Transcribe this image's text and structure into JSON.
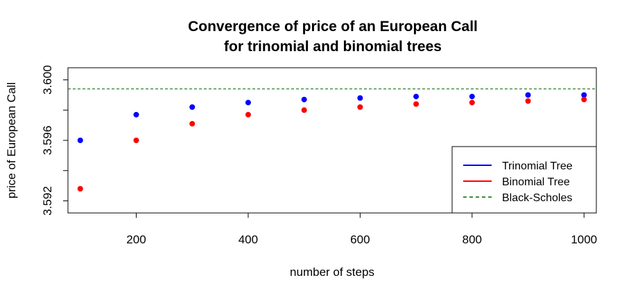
{
  "chart_data": {
    "type": "scatter",
    "title": "Convergence of price of an European Call",
    "subtitle": "for trinomial and binomial trees",
    "xlabel": "number of steps",
    "ylabel": "price of European Call",
    "xlim": [
      78,
      1022
    ],
    "ylim": [
      3.5912,
      3.6008
    ],
    "x_ticks": [
      200,
      400,
      600,
      800,
      1000
    ],
    "x_tick_labels": [
      "200",
      "400",
      "600",
      "800",
      "1000"
    ],
    "y_ticks": [
      3.592,
      3.594,
      3.596,
      3.598,
      3.6
    ],
    "y_tick_labels": [
      "3.592",
      "",
      "3.596",
      "",
      "3.600"
    ],
    "x": [
      100,
      200,
      300,
      400,
      500,
      600,
      700,
      800,
      900,
      1000
    ],
    "series": [
      {
        "name": "Trinomial Tree",
        "color": "#0000ff",
        "style": "points",
        "values": [
          3.596,
          3.5977,
          3.5982,
          3.5985,
          3.5987,
          3.5988,
          3.5989,
          3.5989,
          3.599,
          3.599
        ]
      },
      {
        "name": "Binomial Tree",
        "color": "#ff0000",
        "style": "points",
        "values": [
          3.5928,
          3.596,
          3.5971,
          3.5977,
          3.598,
          3.5982,
          3.5984,
          3.5985,
          3.5986,
          3.5987
        ]
      },
      {
        "name": "Black-Scholes",
        "color": "#006400",
        "style": "dashed-line",
        "value": 3.5994
      }
    ],
    "legend": {
      "placement": "bottom-right",
      "entries": [
        {
          "label": "Trinomial Tree",
          "color": "#0000ff",
          "line": "solid"
        },
        {
          "label": "Binomial Tree",
          "color": "#ff0000",
          "line": "solid"
        },
        {
          "label": "Black-Scholes",
          "color": "#006400",
          "line": "dashed"
        }
      ]
    },
    "grid": false
  }
}
